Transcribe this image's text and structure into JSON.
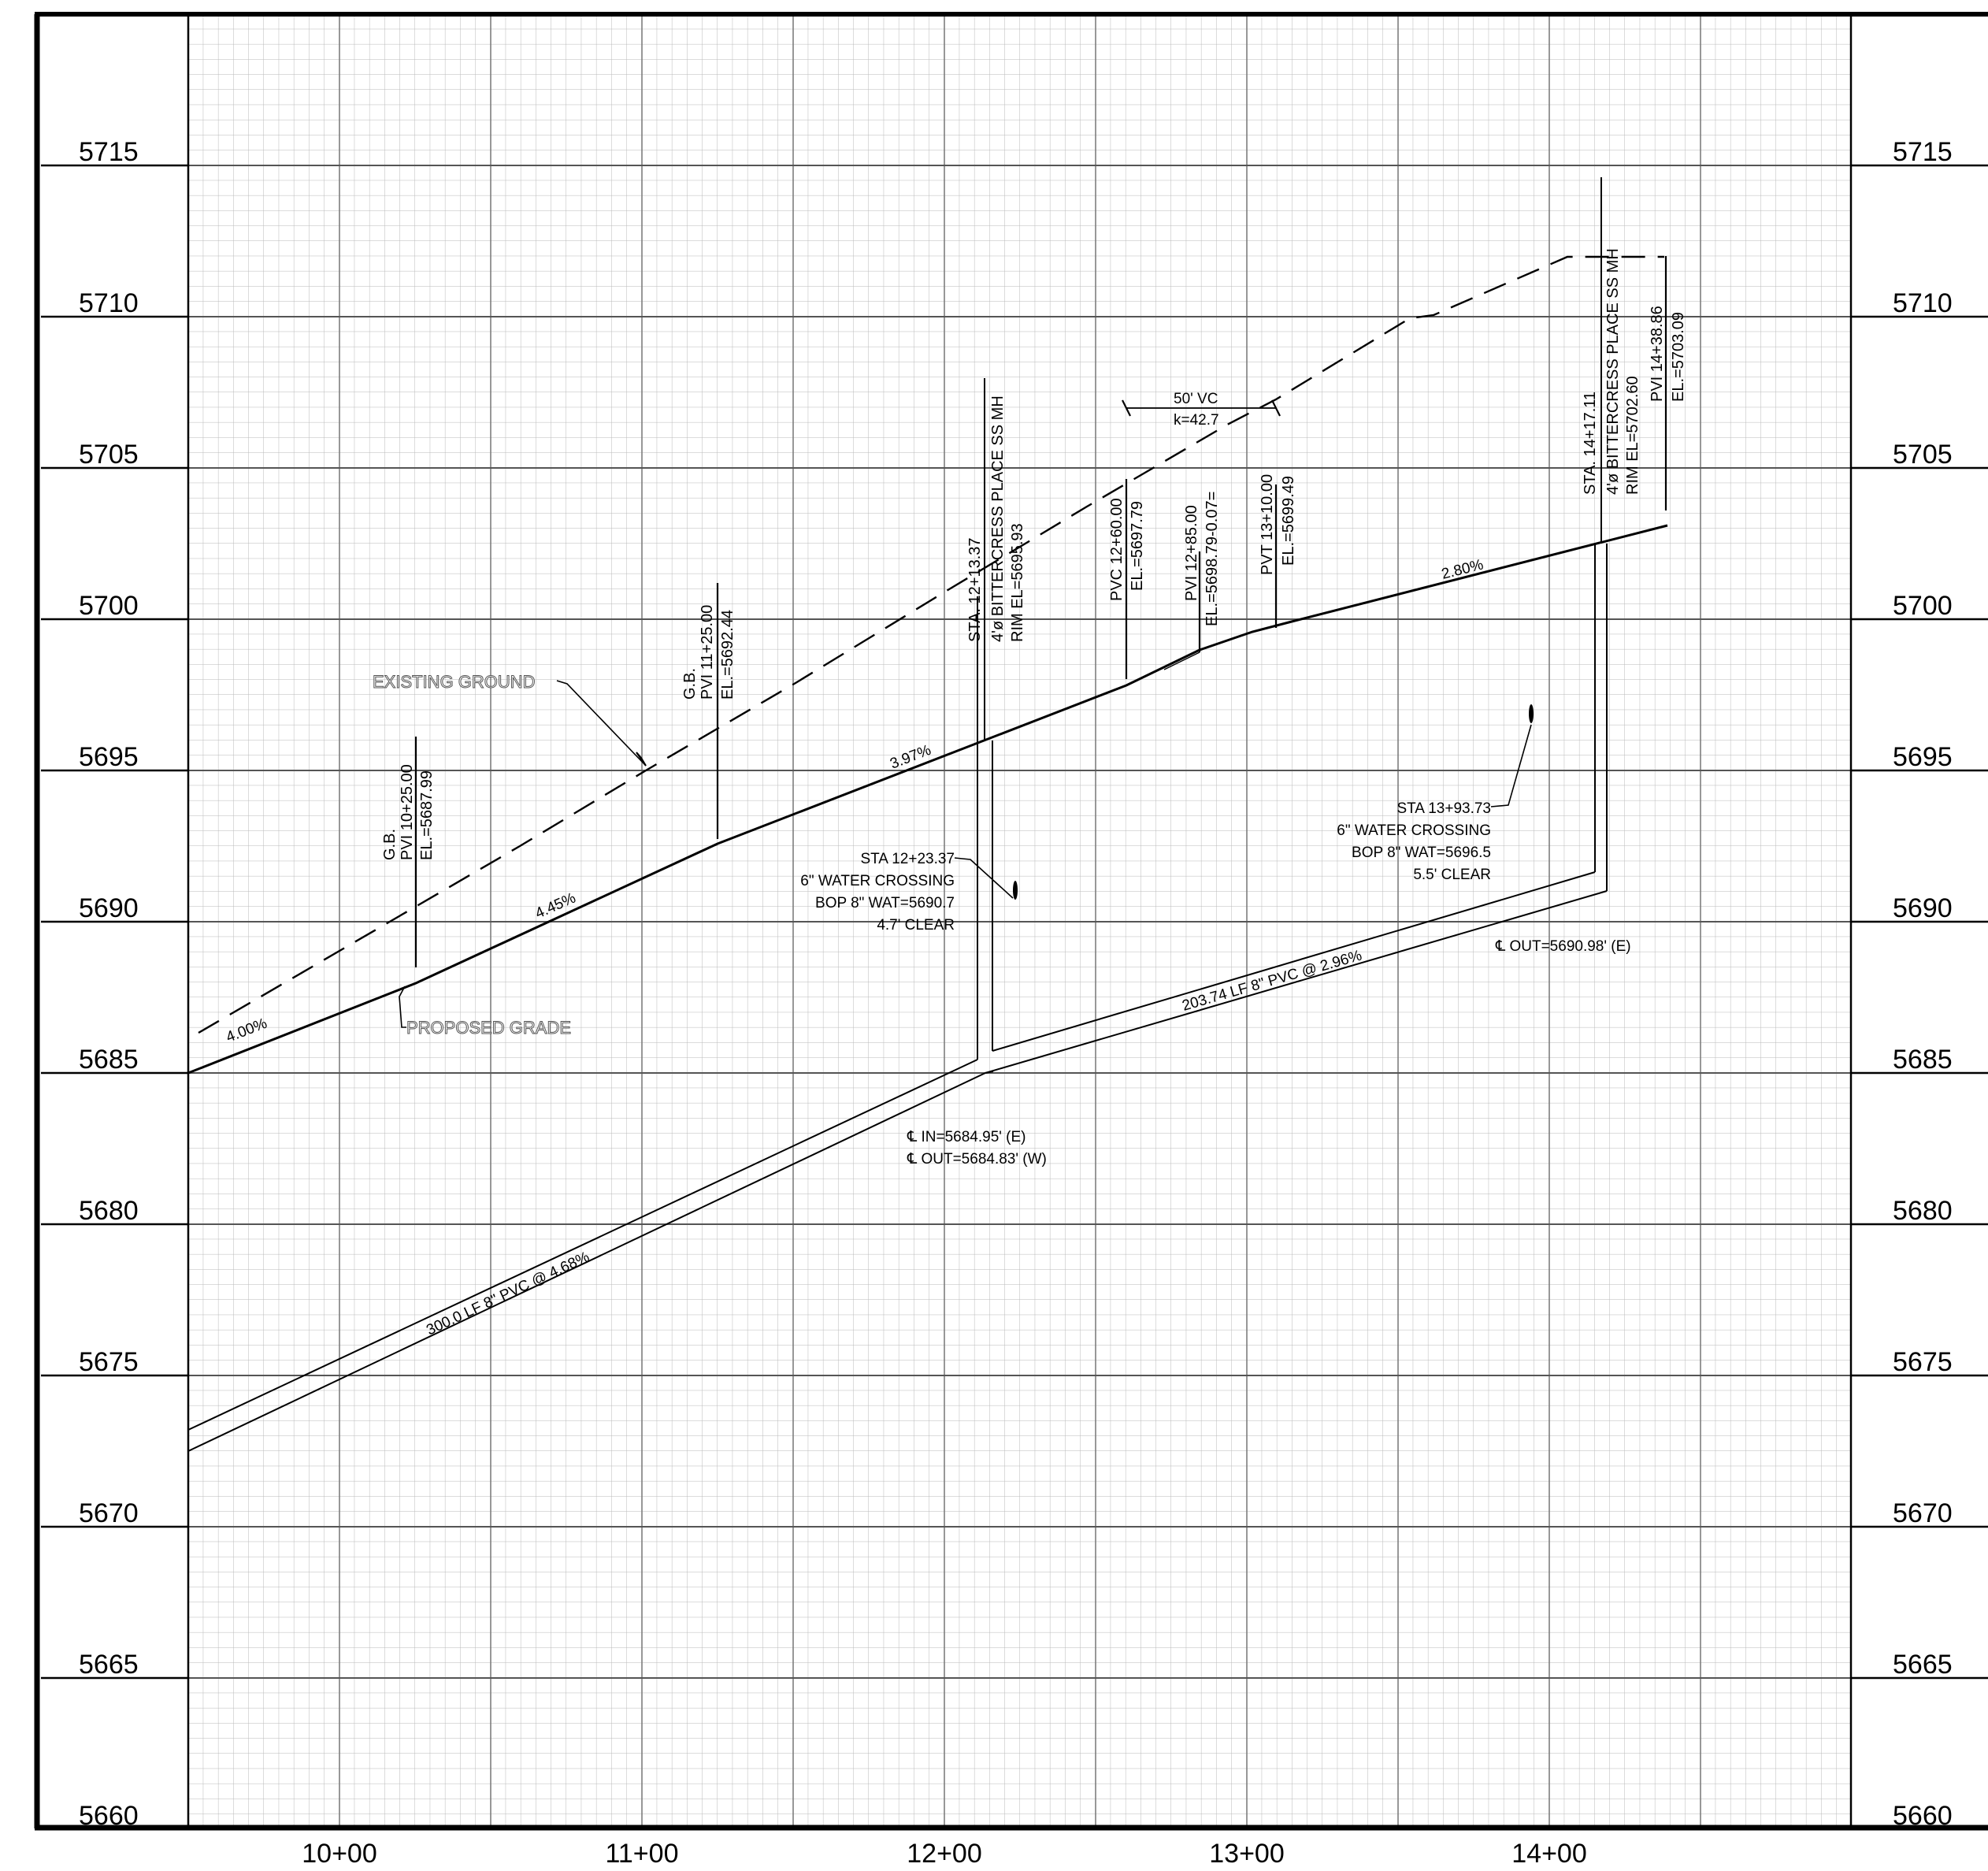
{
  "elevation_labels": [
    "5715",
    "5710",
    "5705",
    "5700",
    "5695",
    "5690",
    "5685",
    "5680",
    "5675",
    "5670",
    "5665",
    "5660"
  ],
  "station_labels": [
    "10+00",
    "11+00",
    "12+00",
    "13+00",
    "14+00"
  ],
  "leader_notes": {
    "existing_ground": "EXISTING GROUND",
    "proposed_grade": "PROPOSED GRADE"
  },
  "grade_labels": {
    "g1": "4.00%",
    "g2": "4.45%",
    "g3": "3.97%",
    "g4": "2.80%"
  },
  "pipe_labels": {
    "pipe1": "300.0 LF 8\" PVC @ 4.68%",
    "pipe2": "203.74 LF 8\" PVC @ 2.96%"
  },
  "vertical_curve": {
    "length": "50' VC",
    "k": "k=42.7"
  },
  "callouts": {
    "gb1": {
      "l1": "G.B.",
      "l2": "PVI 10+25.00",
      "l3": "EL.=5687.99"
    },
    "gb2": {
      "l1": "G.B.",
      "l2": "PVI 11+25.00",
      "l3": "EL.=5692.44"
    },
    "mh1": {
      "l1": "STA. 12+13.37",
      "l2": "4'ø BITTERCRESS PLACE SS MH",
      "l3": "RIM EL=5695.93"
    },
    "pvc": {
      "l1": "PVC 12+60.00",
      "l2": "EL.=5697.79"
    },
    "pvi": {
      "l1": "PVI 12+85.00",
      "l2": "EL.=5698.79-0.07="
    },
    "pvt": {
      "l1": "PVT 13+10.00",
      "l2": "EL.=5699.49"
    },
    "mh2": {
      "l1": "STA. 14+17.11",
      "l2": "4'ø BITTERCRESS PLACE SS MH",
      "l3": "RIM EL=5702.60"
    },
    "pvi_end": {
      "l1": "PVI 14+38.86",
      "l2": "EL.=5703.09"
    }
  },
  "water_crossings": {
    "wc1": {
      "l1": "STA 12+23.37",
      "l2": "6\" WATER CROSSING",
      "l3": "BOP 8\" WAT=5690.7",
      "l4": "4.7' CLEAR"
    },
    "wc2": {
      "l1": "STA 13+93.73",
      "l2": "6\" WATER CROSSING",
      "l3": "BOP 8\" WAT=5696.5",
      "l4": "5.5' CLEAR"
    }
  },
  "flowlines": {
    "mh1_in": "℄ IN=5684.95' (E)",
    "mh1_out": "℄ OUT=5684.83' (W)",
    "mh2_out": "℄ OUT=5690.98' (E)"
  }
}
